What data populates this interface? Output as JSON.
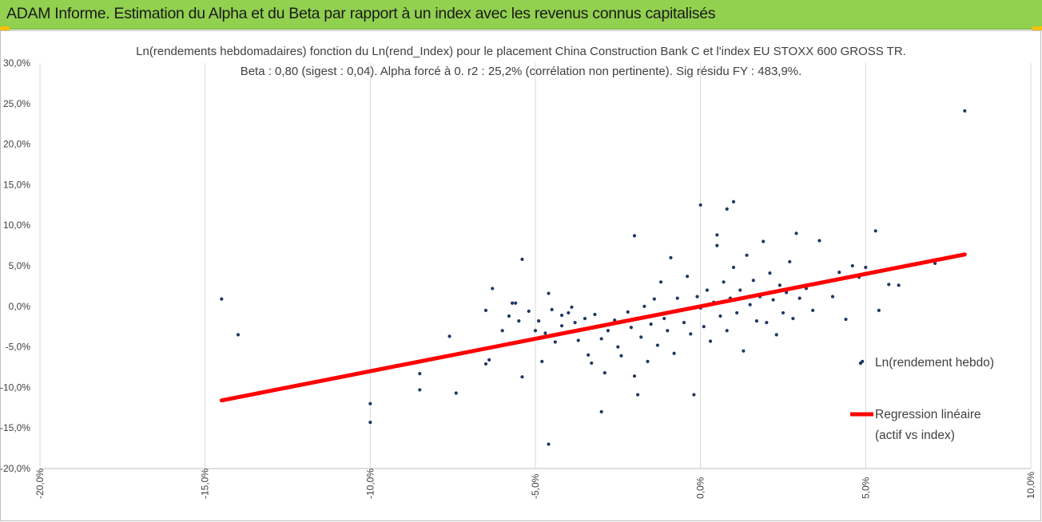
{
  "banner": {
    "title": "ADAM Informe. Estimation du Alpha et du Beta par rapport à un index avec les revenus connus capitalisés"
  },
  "chart_data": {
    "type": "scatter",
    "title_line1": "Ln(rendements hebdomadaires) fonction du Ln(rend_Index) pour le placement China Construction Bank C et l'index EU STOXX 600 GROSS TR.",
    "title_line2": "Beta : 0,80 (sigest : 0,04). Alpha forcé à 0. r2 : 25,2% (corrélation non pertinente). Sig résidu FY : 483,9%.",
    "xlim": [
      -0.2,
      0.1
    ],
    "ylim": [
      -0.2,
      0.3
    ],
    "x_ticks": [
      "-20,0%",
      "-15,0%",
      "-10,0%",
      "-5,0%",
      "0,0%",
      "5,0%",
      "10,0%"
    ],
    "y_ticks": [
      "30,0%",
      "25,0%",
      "20,0%",
      "15,0%",
      "10,0%",
      "5,0%",
      "0,0%",
      "-5,0%",
      "-10,0%",
      "-15,0%",
      "-20,0%"
    ],
    "grid": "vertical",
    "legend_position": "right",
    "series": [
      {
        "name": "Ln(rendement hebdo)",
        "color": "#1f3864",
        "points": [
          [
            -0.145,
            0.009
          ],
          [
            -0.14,
            -0.035
          ],
          [
            -0.1,
            -0.143
          ],
          [
            -0.1,
            -0.12
          ],
          [
            -0.085,
            -0.083
          ],
          [
            -0.085,
            -0.103
          ],
          [
            -0.076,
            -0.037
          ],
          [
            -0.074,
            -0.107
          ],
          [
            -0.065,
            -0.005
          ],
          [
            -0.065,
            -0.071
          ],
          [
            -0.064,
            -0.066
          ],
          [
            -0.063,
            0.022
          ],
          [
            -0.06,
            -0.03
          ],
          [
            -0.058,
            -0.012
          ],
          [
            -0.057,
            0.004
          ],
          [
            -0.056,
            0.004
          ],
          [
            -0.055,
            -0.018
          ],
          [
            -0.054,
            -0.087
          ],
          [
            -0.054,
            0.058
          ],
          [
            -0.052,
            -0.006
          ],
          [
            -0.05,
            -0.03
          ],
          [
            -0.049,
            -0.018
          ],
          [
            -0.048,
            -0.068
          ],
          [
            -0.047,
            -0.033
          ],
          [
            -0.046,
            -0.17
          ],
          [
            -0.046,
            0.016
          ],
          [
            -0.045,
            -0.004
          ],
          [
            -0.044,
            -0.044
          ],
          [
            -0.042,
            -0.011
          ],
          [
            -0.042,
            -0.024
          ],
          [
            -0.04,
            -0.008
          ],
          [
            -0.039,
            -0.001
          ],
          [
            -0.038,
            -0.02
          ],
          [
            -0.037,
            -0.042
          ],
          [
            -0.035,
            -0.015
          ],
          [
            -0.034,
            -0.06
          ],
          [
            -0.033,
            -0.07
          ],
          [
            -0.032,
            -0.01
          ],
          [
            -0.03,
            -0.04
          ],
          [
            -0.03,
            -0.13
          ],
          [
            -0.029,
            -0.082
          ],
          [
            -0.028,
            -0.03
          ],
          [
            -0.026,
            -0.017
          ],
          [
            -0.025,
            -0.05
          ],
          [
            -0.024,
            -0.061
          ],
          [
            -0.022,
            -0.007
          ],
          [
            -0.021,
            -0.026
          ],
          [
            -0.02,
            -0.086
          ],
          [
            -0.02,
            0.087
          ],
          [
            -0.019,
            -0.109
          ],
          [
            -0.018,
            -0.038
          ],
          [
            -0.017,
            0.0
          ],
          [
            -0.016,
            -0.068
          ],
          [
            -0.015,
            -0.022
          ],
          [
            -0.014,
            0.009
          ],
          [
            -0.013,
            -0.048
          ],
          [
            -0.012,
            0.03
          ],
          [
            -0.011,
            -0.015
          ],
          [
            -0.01,
            -0.03
          ],
          [
            -0.009,
            0.06
          ],
          [
            -0.008,
            -0.058
          ],
          [
            -0.007,
            0.01
          ],
          [
            -0.006,
            -0.005
          ],
          [
            -0.005,
            -0.02
          ],
          [
            -0.004,
            0.037
          ],
          [
            -0.003,
            -0.034
          ],
          [
            -0.002,
            -0.109
          ],
          [
            -0.001,
            0.012
          ],
          [
            0.0,
            0.125
          ],
          [
            0.0,
            -0.002
          ],
          [
            0.001,
            -0.025
          ],
          [
            0.002,
            0.02
          ],
          [
            0.003,
            -0.043
          ],
          [
            0.004,
            0.005
          ],
          [
            0.005,
            0.088
          ],
          [
            0.006,
            -0.012
          ],
          [
            0.007,
            0.03
          ],
          [
            0.008,
            -0.03
          ],
          [
            0.009,
            0.01
          ],
          [
            0.01,
            0.048
          ],
          [
            0.011,
            -0.008
          ],
          [
            0.012,
            0.02
          ],
          [
            0.013,
            -0.055
          ],
          [
            0.014,
            0.063
          ],
          [
            0.015,
            0.002
          ],
          [
            0.016,
            0.032
          ],
          [
            0.017,
            -0.018
          ],
          [
            0.018,
            0.012
          ],
          [
            0.019,
            0.08
          ],
          [
            0.02,
            -0.02
          ],
          [
            0.021,
            0.041
          ],
          [
            0.022,
            0.008
          ],
          [
            0.023,
            -0.035
          ],
          [
            0.024,
            0.026
          ],
          [
            0.025,
            -0.008
          ],
          [
            0.026,
            0.017
          ],
          [
            0.027,
            0.055
          ],
          [
            0.028,
            -0.015
          ],
          [
            0.029,
            0.09
          ],
          [
            0.03,
            0.01
          ],
          [
            0.032,
            0.022
          ],
          [
            0.034,
            -0.005
          ],
          [
            0.036,
            0.081
          ],
          [
            0.038,
            0.03
          ],
          [
            0.04,
            0.012
          ],
          [
            0.042,
            0.042
          ],
          [
            0.044,
            -0.016
          ],
          [
            0.046,
            0.05
          ],
          [
            0.048,
            0.036
          ],
          [
            0.049,
            -0.068
          ],
          [
            0.05,
            0.048
          ],
          [
            0.053,
            0.093
          ],
          [
            0.054,
            -0.005
          ],
          [
            0.057,
            0.027
          ],
          [
            0.06,
            0.026
          ],
          [
            0.071,
            0.053
          ],
          [
            0.08,
            0.241
          ],
          [
            0.01,
            0.129
          ],
          [
            0.008,
            0.12
          ],
          [
            0.005,
            0.075
          ]
        ]
      },
      {
        "name": "Regression linéaire (actif vs index)",
        "color": "#ff0000",
        "type": "line",
        "points": [
          [
            -0.145,
            -0.116
          ],
          [
            0.08,
            0.064
          ]
        ]
      }
    ]
  },
  "legend": {
    "scatter_label": "Ln(rendement hebdo)",
    "line_label_1": "Regression linéaire",
    "line_label_2": "(actif vs index)"
  }
}
